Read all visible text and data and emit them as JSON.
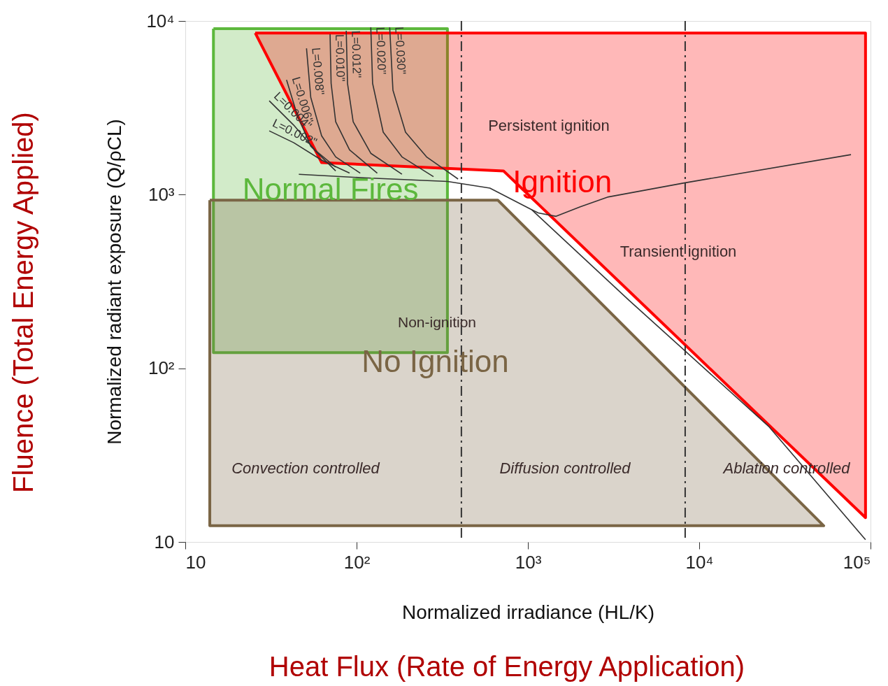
{
  "chart_data": {
    "type": "line",
    "xlabel": "Normalized irradiance (HL/K)",
    "ylabel": "Normalized radiant exposure (Q/ρCL)",
    "log": "xy",
    "xlim": [
      10,
      100000
    ],
    "ylim": [
      10,
      10000
    ],
    "xticks": [
      10,
      {
        "value": 100,
        "label": "10²"
      },
      {
        "value": 1000,
        "label": "10³"
      },
      {
        "value": 10000,
        "label": "10⁴"
      },
      {
        "value": 100000,
        "label": "10⁵"
      }
    ],
    "yticks": [
      10,
      {
        "value": 100,
        "label": "10²"
      },
      {
        "value": 1000,
        "label": "10³"
      },
      {
        "value": 10000,
        "label": "10⁴"
      }
    ],
    "grid": false,
    "marker": "none",
    "series": [
      {
        "type": "area",
        "name": "Normal Fires",
        "color": "#5cb83c",
        "x": [
          14.6,
          339,
          339,
          14.6,
          14.6
        ],
        "values": [
          9040,
          9040,
          123,
          123,
          9040
        ]
      },
      {
        "type": "area",
        "name": "No Ignition",
        "color": "#7a6545",
        "x": [
          13.9,
          667,
          53300,
          13.9,
          13.9
        ],
        "values": [
          930,
          930,
          12.4,
          12.4,
          930
        ]
      },
      {
        "type": "area",
        "name": "Ignition",
        "color": "#ff0000",
        "x": [
          25.6,
          93500,
          93500,
          720,
          62.5,
          25.6
        ],
        "values": [
          8530,
          8530,
          13.8,
          1370,
          1530,
          8530
        ]
      },
      {
        "color": "#333333",
        "x": [
          46,
          110,
          340,
          600,
          1050,
          3900,
          25600,
          93500
        ],
        "values": [
          1310,
          1250,
          1190,
          1090,
          820,
          246,
          46,
          10.3
        ]
      },
      {
        "color": "#333333",
        "x": [
          1050,
          1150,
          1460,
          2020,
          2950,
          8280,
          76900
        ],
        "values": [
          820,
          785,
          750,
          850,
          970,
          1170,
          1700
        ]
      },
      {
        "name": "L=0.002\"",
        "color": "#333333",
        "x": [
          30.9,
          43,
          62.5,
          91
        ],
        "values": [
          2330,
          1990,
          1580,
          1330
        ]
      },
      {
        "name": "L=0.004\"",
        "color": "#333333",
        "x": [
          30.9,
          43,
          57,
          75.5
        ],
        "values": [
          3470,
          2510,
          1810,
          1440
        ]
      },
      {
        "name": "L=0.006\"",
        "color": "#333333",
        "x": [
          39,
          45,
          54,
          75.5
        ],
        "values": [
          4580,
          2880,
          1900,
          1370
        ]
      },
      {
        "name": "L=0.008\"",
        "color": "#333333",
        "x": [
          51,
          54,
          62.5,
          75.5,
          105
        ],
        "values": [
          6960,
          3630,
          2180,
          1650,
          1330
        ]
      },
      {
        "name": "L=0.010\"",
        "color": "#333333",
        "x": [
          70,
          71,
          75.5,
          91,
          132
        ],
        "values": [
          8380,
          4370,
          2630,
          1810,
          1330
        ]
      },
      {
        "name": "L=0.012\"",
        "color": "#333333",
        "x": [
          87,
          88.5,
          95.5,
          121,
          184
        ],
        "values": [
          8790,
          4370,
          2630,
          1730,
          1310
        ]
      },
      {
        "name": "L=0.020\"",
        "color": "#333333",
        "x": [
          121,
          124,
          143,
          184,
          281
        ],
        "values": [
          9200,
          4370,
          2290,
          1650,
          1270
        ]
      },
      {
        "name": "L=0.030\"",
        "color": "#333333",
        "x": [
          156,
          163,
          193,
          256,
          391
        ],
        "values": [
          9200,
          3990,
          2290,
          1650,
          1230
        ]
      }
    ],
    "ref_lines": [
      {
        "axis": "x",
        "value": 409,
        "color": "#333333",
        "line_style": "dashed"
      },
      {
        "axis": "x",
        "value": 8280,
        "color": "#333333",
        "line_style": "dashed"
      }
    ],
    "annotations": [
      "Heat Flux (Rate of Energy Application)",
      "Fluence (Total Energy Applied)",
      "Persistent ignition",
      "Transient ignition",
      "Non-ignition",
      "Convection controlled",
      "Diffusion controlled",
      "Ablation controlled"
    ]
  }
}
